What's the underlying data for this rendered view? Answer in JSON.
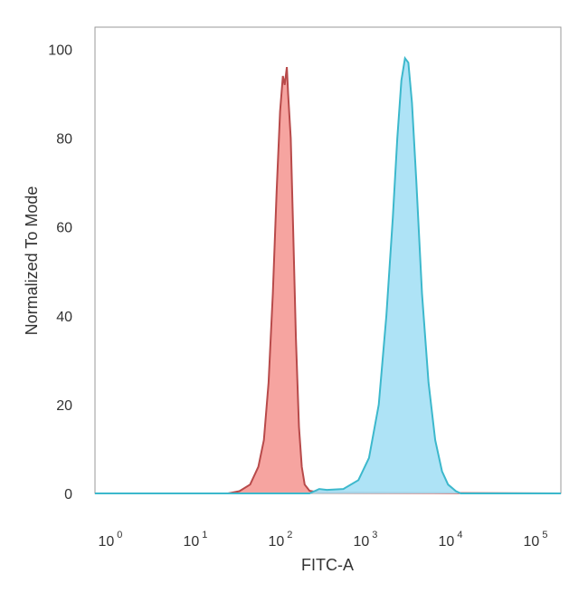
{
  "chart_data": {
    "type": "area",
    "xlabel": "FITC-A",
    "ylabel": "Normalized To Mode",
    "xscale": "log",
    "xlim": [
      0.6,
      180000
    ],
    "ylim": [
      0,
      105
    ],
    "grid": false,
    "legend": "none",
    "x_ticks": [
      {
        "base": "10",
        "exp": "0",
        "value": 1
      },
      {
        "base": "10",
        "exp": "1",
        "value": 10
      },
      {
        "base": "10",
        "exp": "2",
        "value": 100
      },
      {
        "base": "10",
        "exp": "3",
        "value": 1000
      },
      {
        "base": "10",
        "exp": "4",
        "value": 10000
      },
      {
        "base": "10",
        "exp": "5",
        "value": 100000
      }
    ],
    "y_ticks": [
      0,
      20,
      40,
      60,
      80,
      100
    ],
    "series": [
      {
        "color_fill": "#f59a96",
        "color_line": "#b84a4a",
        "points": [
          [
            0.6,
            0
          ],
          [
            22,
            0
          ],
          [
            30,
            0.5
          ],
          [
            40,
            2
          ],
          [
            50,
            6
          ],
          [
            58,
            12
          ],
          [
            66,
            25
          ],
          [
            74,
            45
          ],
          [
            82,
            68
          ],
          [
            90,
            86
          ],
          [
            97,
            94
          ],
          [
            102,
            92
          ],
          [
            108,
            96
          ],
          [
            112,
            90
          ],
          [
            120,
            80
          ],
          [
            128,
            60
          ],
          [
            138,
            35
          ],
          [
            150,
            15
          ],
          [
            162,
            6
          ],
          [
            175,
            2
          ],
          [
            200,
            0.6
          ],
          [
            260,
            0.2
          ],
          [
            180000,
            0
          ]
        ]
      },
      {
        "color_fill": "#a5e0f5",
        "color_line": "#3cb8cc",
        "points": [
          [
            0.6,
            0
          ],
          [
            200,
            0
          ],
          [
            260,
            1
          ],
          [
            320,
            0.8
          ],
          [
            500,
            1
          ],
          [
            750,
            3
          ],
          [
            1000,
            8
          ],
          [
            1300,
            20
          ],
          [
            1600,
            40
          ],
          [
            1900,
            62
          ],
          [
            2150,
            80
          ],
          [
            2400,
            93
          ],
          [
            2650,
            98
          ],
          [
            2900,
            97
          ],
          [
            3200,
            88
          ],
          [
            3600,
            70
          ],
          [
            4200,
            45
          ],
          [
            5000,
            25
          ],
          [
            6000,
            12
          ],
          [
            7200,
            5
          ],
          [
            8500,
            2
          ],
          [
            10500,
            0.5
          ],
          [
            12000,
            0
          ],
          [
            180000,
            0
          ]
        ]
      }
    ]
  }
}
